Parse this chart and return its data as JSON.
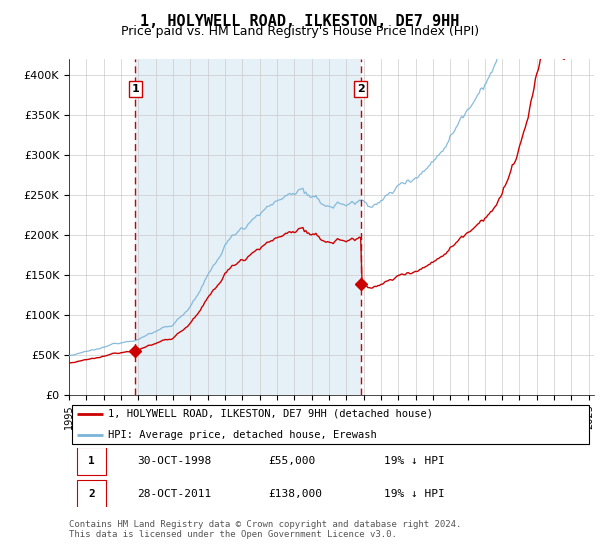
{
  "title": "1, HOLYWELL ROAD, ILKESTON, DE7 9HH",
  "subtitle": "Price paid vs. HM Land Registry's House Price Index (HPI)",
  "legend_line1": "1, HOLYWELL ROAD, ILKESTON, DE7 9HH (detached house)",
  "legend_line2": "HPI: Average price, detached house, Erewash",
  "table_row1": [
    "1",
    "30-OCT-1998",
    "£55,000",
    "19% ↓ HPI"
  ],
  "table_row2": [
    "2",
    "28-OCT-2011",
    "£138,000",
    "19% ↓ HPI"
  ],
  "footnote": "Contains HM Land Registry data © Crown copyright and database right 2024.\nThis data is licensed under the Open Government Licence v3.0.",
  "sale1_date": 1998.83,
  "sale1_price": 55000,
  "sale2_date": 2011.83,
  "sale2_price": 138000,
  "hpi_color": "#7ab4d8",
  "property_color": "#cc0000",
  "vline_color": "#cc0000",
  "marker_color": "#cc0000",
  "background_shade": "#daeaf5",
  "grid_color": "#cccccc",
  "ylim": [
    0,
    420000
  ],
  "yticks": [
    0,
    50000,
    100000,
    150000,
    200000,
    250000,
    300000,
    350000,
    400000
  ],
  "title_fontsize": 11,
  "subtitle_fontsize": 9,
  "seed": 12345
}
